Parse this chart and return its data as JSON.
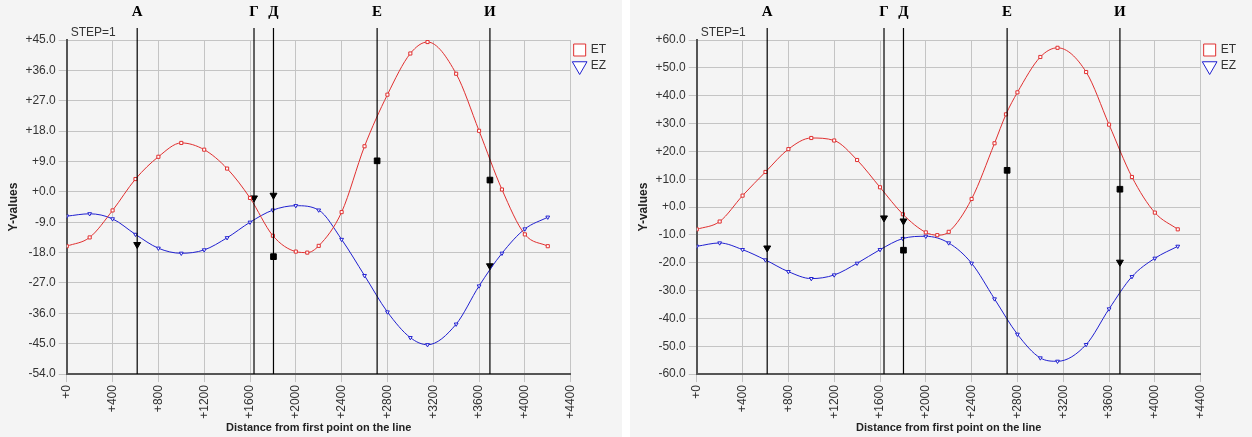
{
  "chart_data": [
    {
      "type": "line",
      "xlabel": "Distance from first point on the line",
      "ylabel": "Y-values",
      "annotations": [
        "STEP=1"
      ],
      "grid": true,
      "legend": "top right",
      "xlim": [
        0,
        4400
      ],
      "xticks": [
        {
          "value": 0,
          "label": "+0"
        },
        {
          "value": 400,
          "label": "+400"
        },
        {
          "value": 800,
          "label": "+800"
        },
        {
          "value": 1200,
          "label": "+1200"
        },
        {
          "value": 1600,
          "label": "+1600"
        },
        {
          "value": 2000,
          "label": "+2000"
        },
        {
          "value": 2400,
          "label": "+2400"
        },
        {
          "value": 2800,
          "label": "+2800"
        },
        {
          "value": 3200,
          "label": "+3200"
        },
        {
          "value": 3600,
          "label": "+3600"
        },
        {
          "value": 4000,
          "label": "+4000"
        },
        {
          "value": 4400,
          "label": "+4400"
        }
      ],
      "ylim": [
        -54,
        45
      ],
      "yticks": [
        {
          "value": -54,
          "label": "-54.0"
        },
        {
          "value": -45,
          "label": "-45.0"
        },
        {
          "value": -36,
          "label": "-36.0"
        },
        {
          "value": -27,
          "label": "-27.0"
        },
        {
          "value": -18,
          "label": "-18.0"
        },
        {
          "value": -9,
          "label": "-9.0"
        },
        {
          "value": 0,
          "label": "+0.0"
        },
        {
          "value": 9,
          "label": "+9.0"
        },
        {
          "value": 18,
          "label": "+18.0"
        },
        {
          "value": 27,
          "label": "+27.0"
        },
        {
          "value": 36,
          "label": "+36.0"
        },
        {
          "value": 45,
          "label": "+45.0"
        }
      ],
      "ref_lines": [
        {
          "axis": "x",
          "value": 615,
          "label": "А"
        },
        {
          "axis": "x",
          "value": 1635,
          "label": "Г"
        },
        {
          "axis": "x",
          "value": 1805,
          "label": "Д"
        },
        {
          "axis": "x",
          "value": 2710,
          "label": "Е"
        },
        {
          "axis": "x",
          "value": 3695,
          "label": "И"
        }
      ],
      "series": [
        {
          "name": "ET",
          "type": "line",
          "marker": "square",
          "color": "#e03030",
          "x": [
            0,
            200,
            400,
            600,
            800,
            1000,
            1200,
            1400,
            1600,
            1800,
            2000,
            2100,
            2200,
            2400,
            2600,
            2800,
            3000,
            3150,
            3400,
            3600,
            3800,
            4000,
            4200
          ],
          "values": [
            -16.1,
            -13.5,
            -5.5,
            3.8,
            10.4,
            14.5,
            12.5,
            6.9,
            -1.8,
            -13,
            -17.7,
            -18,
            -16,
            -6,
            13.5,
            28.8,
            41,
            44.4,
            35,
            18.1,
            0.7,
            -12.6,
            -16.1
          ]
        },
        {
          "name": "EZ",
          "type": "line",
          "marker": "triangle",
          "color": "#2020d0",
          "x": [
            0,
            200,
            400,
            600,
            800,
            1000,
            1200,
            1400,
            1600,
            1800,
            2000,
            2200,
            2400,
            2600,
            2800,
            3000,
            3150,
            3400,
            3600,
            3800,
            4000,
            4200
          ],
          "values": [
            -7.2,
            -6.5,
            -8,
            -12.6,
            -16.7,
            -18.2,
            -17.2,
            -13.6,
            -9,
            -5.4,
            -4.1,
            -5.4,
            -14.1,
            -24.8,
            -35.6,
            -43.2,
            -45.3,
            -39.2,
            -27.9,
            -18.2,
            -11,
            -7.5
          ]
        },
        {
          "type": "scatter",
          "marker": "triangle",
          "color": "#000000",
          "x": [
            615,
            1635,
            1805,
            3695
          ],
          "values": [
            -15.6,
            -1.8,
            -1,
            -21.9
          ]
        },
        {
          "type": "scatter",
          "marker": "square",
          "color": "#000000",
          "x": [
            1805,
            2710,
            3695
          ],
          "values": [
            -19.2,
            9.2,
            3.5
          ]
        }
      ]
    },
    {
      "type": "line",
      "xlabel": "Distance from first point on the line",
      "ylabel": "Y-values",
      "annotations": [
        "STEP=1"
      ],
      "grid": true,
      "legend": "top right",
      "xlim": [
        0,
        4400
      ],
      "xticks": [
        {
          "value": 0,
          "label": "+0"
        },
        {
          "value": 400,
          "label": "+400"
        },
        {
          "value": 800,
          "label": "+800"
        },
        {
          "value": 1200,
          "label": "+1200"
        },
        {
          "value": 1600,
          "label": "+1600"
        },
        {
          "value": 2000,
          "label": "+2000"
        },
        {
          "value": 2400,
          "label": "+2400"
        },
        {
          "value": 2800,
          "label": "+2800"
        },
        {
          "value": 3200,
          "label": "+3200"
        },
        {
          "value": 3600,
          "label": "+3600"
        },
        {
          "value": 4000,
          "label": "+4000"
        },
        {
          "value": 4400,
          "label": "+4400"
        }
      ],
      "ylim": [
        -60,
        60
      ],
      "yticks": [
        {
          "value": -60,
          "label": "-60.0"
        },
        {
          "value": -50,
          "label": "-50.0"
        },
        {
          "value": -40,
          "label": "-40.0"
        },
        {
          "value": -30,
          "label": "-30.0"
        },
        {
          "value": -20,
          "label": "-20.0"
        },
        {
          "value": -10,
          "label": "-10.0"
        },
        {
          "value": 0,
          "label": "+0.0"
        },
        {
          "value": 10,
          "label": "+10.0"
        },
        {
          "value": 20,
          "label": "+20.0"
        },
        {
          "value": 30,
          "label": "+30.0"
        },
        {
          "value": 40,
          "label": "+40.0"
        },
        {
          "value": 50,
          "label": "+50.0"
        },
        {
          "value": 60,
          "label": "+60.0"
        }
      ],
      "ref_lines": [
        {
          "axis": "x",
          "value": 615,
          "label": "А"
        },
        {
          "axis": "x",
          "value": 1635,
          "label": "Г"
        },
        {
          "axis": "x",
          "value": 1805,
          "label": "Д"
        },
        {
          "axis": "x",
          "value": 2710,
          "label": "Е"
        },
        {
          "axis": "x",
          "value": 3695,
          "label": "И"
        }
      ],
      "series": [
        {
          "name": "ET",
          "type": "line",
          "marker": "square",
          "color": "#e03030",
          "x": [
            0,
            200,
            400,
            600,
            800,
            1000,
            1200,
            1400,
            1600,
            1800,
            2000,
            2100,
            2200,
            2400,
            2600,
            2700,
            2800,
            3000,
            3150,
            3400,
            3600,
            3800,
            4000,
            4200
          ],
          "values": [
            -8,
            -5.2,
            4.1,
            12.6,
            20.8,
            24.8,
            23.9,
            16.9,
            7.1,
            -2.6,
            -9.1,
            -10.1,
            -8.9,
            2.9,
            22.9,
            33.3,
            41.2,
            53.9,
            57.2,
            48.5,
            29.6,
            10.8,
            -2,
            -8
          ]
        },
        {
          "name": "EZ",
          "type": "line",
          "marker": "triangle",
          "color": "#2020d0",
          "x": [
            0,
            200,
            400,
            600,
            800,
            1000,
            1200,
            1400,
            1600,
            1800,
            2000,
            2200,
            2400,
            2600,
            2800,
            3000,
            3150,
            3400,
            3600,
            3800,
            4000,
            4200
          ],
          "values": [
            -14.1,
            -12.9,
            -15.3,
            -19,
            -23.2,
            -25.7,
            -24.4,
            -20.2,
            -15.3,
            -11.3,
            -10.5,
            -12.9,
            -20.2,
            -33,
            -45.7,
            -54.2,
            -55.4,
            -49.4,
            -36.6,
            -25,
            -18.4,
            -14.1
          ]
        },
        {
          "type": "scatter",
          "marker": "triangle",
          "color": "#000000",
          "x": [
            615,
            1635,
            1805,
            3695
          ],
          "values": [
            -14.7,
            -3.9,
            -5,
            -19.8
          ]
        },
        {
          "type": "scatter",
          "marker": "square",
          "color": "#000000",
          "x": [
            1805,
            2710,
            3695
          ],
          "values": [
            -15.5,
            13.2,
            6.4
          ]
        }
      ]
    }
  ]
}
